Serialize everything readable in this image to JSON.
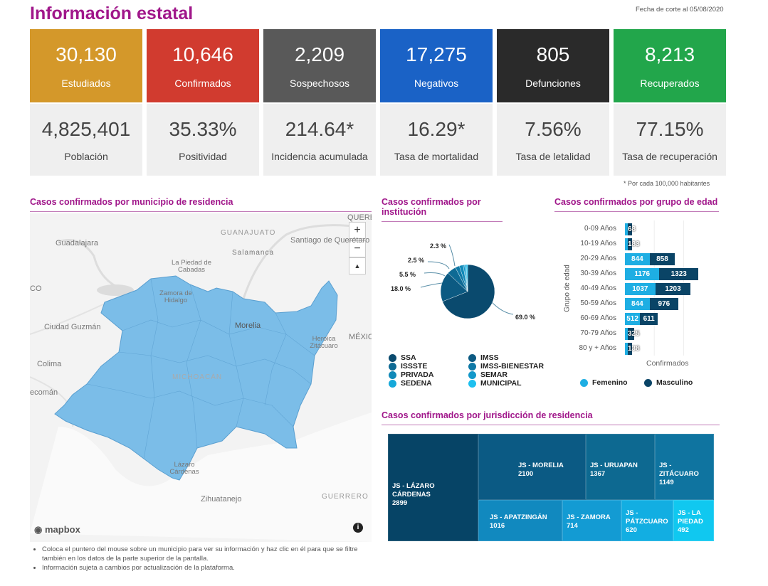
{
  "header": {
    "title": "Información estatal",
    "cutoff": "Fecha de corte al 05/08/2020"
  },
  "cards": [
    {
      "value": "30,130",
      "label": "Estudiados",
      "color": "#d4982a",
      "stat": "4,825,401",
      "stat_label": "Población"
    },
    {
      "value": "10,646",
      "label": "Confirmados",
      "color": "#d13b2f",
      "stat": "35.33%",
      "stat_label": "Positividad"
    },
    {
      "value": "2,209",
      "label": "Sospechosos",
      "color": "#595959",
      "stat": "214.64*",
      "stat_label": "Incidencia acumulada"
    },
    {
      "value": "17,275",
      "label": "Negativos",
      "color": "#1a62c6",
      "stat": "16.29*",
      "stat_label": "Tasa de mortalidad"
    },
    {
      "value": "805",
      "label": "Defunciones",
      "color": "#2a2a2a",
      "stat": "7.56%",
      "stat_label": "Tasa de letalidad"
    },
    {
      "value": "8,213",
      "label": "Recuperados",
      "color": "#22a64b",
      "stat": "77.15%",
      "stat_label": "Tasa de recuperación"
    }
  ],
  "note": "* Por cada 100,000 habitantes",
  "map": {
    "title": "Casos confirmados por municipio de residencia",
    "zoom_in": "+",
    "zoom_out": "−",
    "compass": "▲",
    "attribution": "mapbox",
    "info": "i",
    "labels": [
      "GUANAJUATO",
      "Guadalajara",
      "Santiago de Querétaro",
      "Salamanca",
      "La Piedad de Cabadas",
      "Zamora de Hidalgo",
      "Morelia",
      "Ciudad Guzmán",
      "Heroica Zitácuaro",
      "Colima",
      "MICHOACÁN",
      "Lázaro Cárdenas",
      "Zihuatanejo",
      "GUERRERO",
      "MÉXICO",
      "QUERE",
      "CO",
      "ecomán"
    ],
    "region_color": "#7bbde8"
  },
  "footnotes": [
    "Coloca el puntero del mouse sobre un municipio para ver su información y haz clic en él para que se filtre también en los datos de la parte superior de la pantalla.",
    "Información sujeta a cambios por actualización de la plataforma."
  ],
  "chart_data": [
    {
      "type": "pie",
      "title": "Casos confirmados por institución",
      "categories": [
        "SSA",
        "IMSS",
        "ISSSTE",
        "IMSS-BIENESTAR",
        "PRIVADA",
        "SEMAR",
        "SEDENA",
        "MUNICIPAL"
      ],
      "values": [
        69.0,
        18.0,
        5.5,
        2.5,
        2.3,
        null,
        null,
        null
      ],
      "labels": [
        "69.0 %",
        "18.0 %",
        "5.5 %",
        "2.5 %",
        "2.3 %"
      ],
      "colors": [
        "#0a4a6e",
        "#0c5a82",
        "#0e6a94",
        "#0f79a6",
        "#1189b8",
        "#1398c9",
        "#16a8d9",
        "#1ec0ef"
      ],
      "legend_position": "bottom"
    },
    {
      "type": "bar",
      "orientation": "horizontal",
      "stacked": true,
      "title": "Casos confirmados por grupo de edad",
      "ylabel": "Grupo de edad",
      "xlabel": "Confirmados",
      "categories": [
        "0-09 Años",
        "10-19 Años",
        "20-29 Años",
        "30-39 Años",
        "40-49 Años",
        "50-59 Años",
        "60-69 Años",
        "70-79 Años",
        "80 y + Años"
      ],
      "series": [
        {
          "name": "Femenino",
          "color": "#1eaee3",
          "values": [
            null,
            null,
            844,
            1176,
            1037,
            844,
            512,
            null,
            null
          ]
        },
        {
          "name": "Masculino",
          "color": "#0a4466",
          "values": [
            68,
            183,
            858,
            1323,
            1203,
            976,
            611,
            325,
            138
          ]
        }
      ],
      "xlim": [
        0,
        2700
      ],
      "grid": true,
      "legend_position": "bottom"
    },
    {
      "type": "treemap",
      "title": "Casos confirmados por jurisdicción de residencia",
      "items": [
        {
          "name": "JS - LÁZARO CÁRDENAS",
          "value": 2899
        },
        {
          "name": "JS - MORELIA",
          "value": 2100
        },
        {
          "name": "JS - URUAPAN",
          "value": 1367
        },
        {
          "name": "JS - ZITÁCUARO",
          "value": 1149
        },
        {
          "name": "JS - APATZINGÁN",
          "value": 1016
        },
        {
          "name": "JS - ZAMORA",
          "value": 714
        },
        {
          "name": "JS - PÁTZCUARO",
          "value": 620
        },
        {
          "name": "JS - LA PIEDAD",
          "value": 492
        }
      ]
    }
  ]
}
